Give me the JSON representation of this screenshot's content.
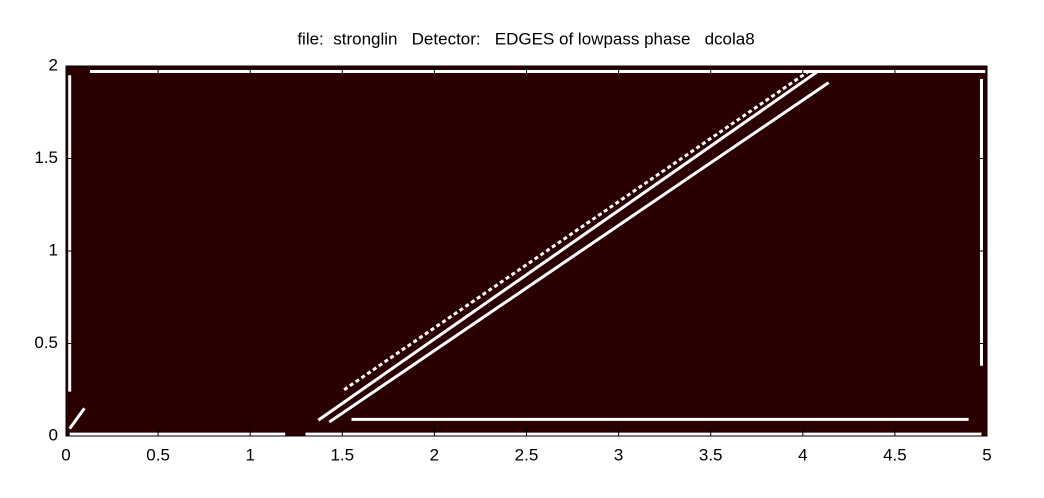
{
  "chart_data": {
    "type": "image",
    "title": "file:  stronglin   Detector:   EDGES of lowpass phase   dcola8",
    "background": "#2b0000",
    "color": "#ffffff",
    "xlim": [
      0,
      5
    ],
    "ylim": [
      0,
      2
    ],
    "xticks": [
      0,
      0.5,
      1,
      1.5,
      2,
      2.5,
      3,
      3.5,
      4,
      4.5,
      5
    ],
    "yticks": [
      0,
      0.5,
      1,
      1.5,
      2
    ],
    "edges": [
      {
        "x": [
          0.13,
          4.99
        ],
        "y": [
          1.97,
          1.97
        ]
      },
      {
        "x": [
          0.02,
          0.02
        ],
        "y": [
          0.24,
          1.95
        ]
      },
      {
        "x": [
          4.97,
          4.97
        ],
        "y": [
          0.38,
          1.93
        ]
      },
      {
        "x": [
          0.02,
          1.19
        ],
        "y": [
          0.01,
          0.01
        ]
      },
      {
        "x": [
          1.3,
          4.97
        ],
        "y": [
          0.01,
          0.01
        ]
      },
      {
        "x": [
          1.55,
          4.9
        ],
        "y": [
          0.09,
          0.09
        ]
      },
      {
        "x": [
          1.37,
          4.08
        ],
        "y": [
          0.086,
          1.97
        ]
      },
      {
        "x": [
          1.43,
          4.14
        ],
        "y": [
          0.076,
          1.91
        ]
      },
      {
        "x": [
          1.51,
          4.03
        ],
        "y": [
          0.25,
          1.97
        ]
      },
      {
        "x": [
          0.02,
          0.1
        ],
        "y": [
          0.04,
          0.15
        ]
      }
    ]
  }
}
